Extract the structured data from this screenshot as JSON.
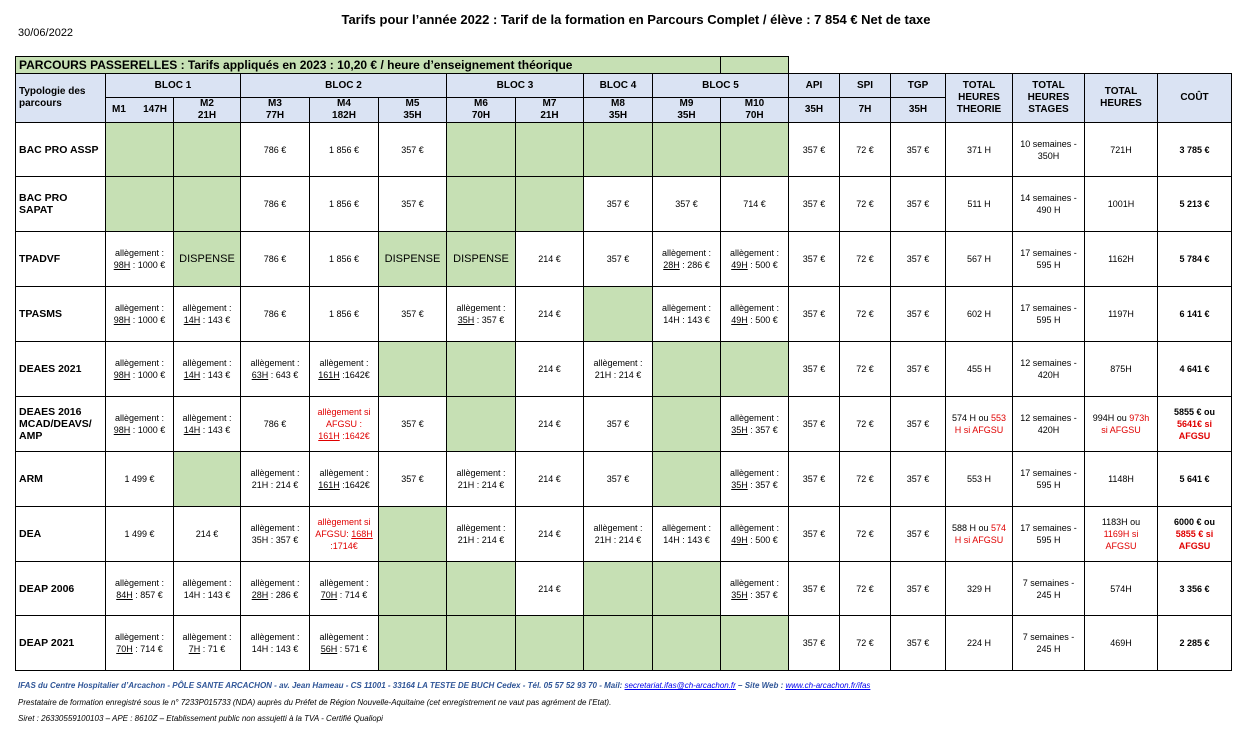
{
  "date": "30/06/2022",
  "title": "Tarifs pour l’année 2022 : Tarif de la formation en Parcours Complet / élève : 7 854 € Net de taxe",
  "banner": "PARCOURS PASSERELLES : Tarifs appliqués en 2023 : 10,20 € / heure d’enseignement théorique",
  "header": {
    "typologie": "Typologie des parcours",
    "bloc1": "BLOC 1",
    "bloc2": "BLOC 2",
    "bloc3": "BLOC 3",
    "bloc4": "BLOC 4",
    "bloc5": "BLOC 5",
    "m1": "M1",
    "m1h": "147H",
    "m2": "M2",
    "m2h": "21H",
    "m3": "M3",
    "m3h": "77H",
    "m4": "M4",
    "m4h": "182H",
    "m5": "M5",
    "m5h": "35H",
    "m6": "M6",
    "m6h": "70H",
    "m7": "M7",
    "m7h": "21H",
    "m8": "M8",
    "m8h": "35H",
    "m9": "M9",
    "m9h": "35H",
    "m10": "M10",
    "m10h": "70H",
    "api": "API",
    "apih": "35H",
    "spi": "SPI",
    "spih": "7H",
    "tgp": "TGP",
    "tgph": "35H",
    "tht1": "TOTAL",
    "tht2": "HEURES",
    "tht3": "THEORIE",
    "ths1": "TOTAL",
    "ths2": "HEURES",
    "ths3": "STAGES",
    "th1": "TOTAL",
    "th2": "HEURES",
    "cout": "COÛT"
  },
  "rows": {
    "assp": {
      "name": "BAC PRO ASSP",
      "m3": "786 €",
      "m4": "1 856 €",
      "m5": "357 €",
      "api": "357 €",
      "spi": "72 €",
      "tgp": "357 €",
      "tht": "371 H",
      "ths1": "10 semaines -",
      "ths2": "350H",
      "th": "721H",
      "cout": "3 785 €"
    },
    "sapat": {
      "name": "BAC PRO SAPAT",
      "m3": "786 €",
      "m4": "1 856 €",
      "m5": "357 €",
      "m8": "357 €",
      "m9": "357 €",
      "m10": "714 €",
      "api": "357 €",
      "spi": "72 €",
      "tgp": "357 €",
      "tht": "511 H",
      "ths1": "14 semaines -",
      "ths2": "490 H",
      "th": "1001H",
      "cout": "5 213 €"
    },
    "tpadvf": {
      "name": "TPADVF",
      "m1a": "allègement :",
      "m1b": "98H",
      "m1c": " : 1000 €",
      "m2": "DISPENSE",
      "m3": "786 €",
      "m4": "1 856 €",
      "m5": "DISPENSE",
      "m6": "DISPENSE",
      "m7": "214 €",
      "m8": "357 €",
      "m9a": "allègement :",
      "m9b": "28H",
      "m9c": " : 286 €",
      "m10a": "allègement :",
      "m10b": "49H",
      "m10c": " : 500 €",
      "api": "357 €",
      "spi": "72 €",
      "tgp": "357 €",
      "tht": "567 H",
      "ths1": "17 semaines -",
      "ths2": "595 H",
      "th": "1162H",
      "cout": "5 784 €"
    },
    "tpasms": {
      "name": "TPASMS",
      "m1a": "allègement :",
      "m1b": "98H",
      "m1c": " : 1000 €",
      "m2a": "allègement :",
      "m2b": "14H",
      "m2c": " : 143 €",
      "m3": "786 €",
      "m4": "1 856 €",
      "m5": "357 €",
      "m6a": "allègement :",
      "m6b": "35H",
      "m6c": " : 357 €",
      "m7": "214 €",
      "m9a": "allègement :",
      "m9b": "14H : 143 €",
      "m10a": "allègement :",
      "m10b": "49H",
      "m10c": " : 500 €",
      "api": "357 €",
      "spi": "72 €",
      "tgp": "357 €",
      "tht": "602 H",
      "ths1": "17 semaines -",
      "ths2": "595 H",
      "th": "1197H",
      "cout": "6 141 €"
    },
    "deaes2021": {
      "name": "DEAES 2021",
      "m1a": "allègement :",
      "m1b": "98H",
      "m1c": " : 1000 €",
      "m2a": "allègement :",
      "m2b": "14H",
      "m2c": " : 143 €",
      "m3a": "allègement :",
      "m3b": "63H",
      "m3c": " : 643 €",
      "m4a": "allègement :",
      "m4b": "161H",
      "m4c": " :1642€",
      "m7": "214 €",
      "m8a": "allègement :",
      "m8b": "21H : 214 €",
      "api": "357 €",
      "spi": "72 €",
      "tgp": "357 €",
      "tht": "455 H",
      "ths1": "12 semaines -",
      "ths2": "420H",
      "th": "875H",
      "cout": "4 641 €"
    },
    "deaes2016": {
      "name1": "DEAES 2016",
      "name2": "MCAD/DEAVS/",
      "name3": "AMP",
      "m1a": "allègement :",
      "m1b": "98H",
      "m1c": " : 1000 €",
      "m2a": "allègement :",
      "m2b": "14H",
      "m2c": " : 143 €",
      "m3": "786 €",
      "m4a": "allègement si",
      "m4b": "AFGSU :",
      "m4c": "161H",
      "m4d": " :1642€",
      "m5": "357 €",
      "m7": "214 €",
      "m8": "357 €",
      "m10a": "allègement :",
      "m10b": "35H",
      "m10c": " : 357 €",
      "api": "357 €",
      "spi": "72 €",
      "tgp": "357 €",
      "tht1": "574 H ou ",
      "tht2": "553",
      "tht3": "H si AFGSU",
      "ths1": "12 semaines -",
      "ths2": "420H",
      "th1": "994H ou ",
      "th2": "973h",
      "th3": "si AFGSU",
      "cout1": "5855 € ou",
      "cout2": "5641€ si",
      "cout3": "AFGSU"
    },
    "arm": {
      "name": "ARM",
      "m1": "1 499 €",
      "m3a": "allègement :",
      "m3b": "21H : 214 €",
      "m4a": "allègement :",
      "m4b": "161H",
      "m4c": " :1642€",
      "m5": "357 €",
      "m6a": "allègement :",
      "m6b": "21H : 214 €",
      "m7": "214 €",
      "m8": "357 €",
      "m10a": "allègement :",
      "m10b": "35H",
      "m10c": " : 357 €",
      "api": "357 €",
      "spi": "72 €",
      "tgp": "357 €",
      "tht": "553 H",
      "ths1": "17 semaines -",
      "ths2": "595 H",
      "th": "1148H",
      "cout": "5 641 €"
    },
    "dea": {
      "name": "DEA",
      "m1": "1 499 €",
      "m2": "214 €",
      "m3a": "allègement :",
      "m3b": "35H : 357 €",
      "m4a": "allègement si",
      "m4b": "AFGSU: ",
      "m4c": "168H",
      "m4d": ":1714€",
      "m6a": "allègement :",
      "m6b": "21H : 214 €",
      "m7": "214 €",
      "m8a": "allègement :",
      "m8b": "21H : 214 €",
      "m9a": "allègement :",
      "m9b": "14H : 143 €",
      "m10a": "allègement :",
      "m10b": "49H",
      "m10c": " : 500 €",
      "api": "357 €",
      "spi": "72 €",
      "tgp": "357 €",
      "tht1": "588 H ou ",
      "tht2": "574",
      "tht3": "H si AFGSU",
      "ths1": "17 semaines -",
      "ths2": "595 H",
      "th1": "1183H ou",
      "th2": "1169H si",
      "th3": "AFGSU",
      "cout1": "6000 € ou",
      "cout2": "5855 € si",
      "cout3": "AFGSU"
    },
    "deap2006": {
      "name": "DEAP 2006",
      "m1a": "allègement :",
      "m1b": "84H",
      "m1c": " : 857 €",
      "m2a": "allègement :",
      "m2b": "14H : 143 €",
      "m3a": "allègement :",
      "m3b": "28H",
      "m3c": " : 286 €",
      "m4a": "allègement :",
      "m4b": "70H",
      "m4c": " : 714 €",
      "m7": "214 €",
      "m10a": "allègement :",
      "m10b": "35H",
      "m10c": " : 357 €",
      "api": "357 €",
      "spi": "72 €",
      "tgp": "357 €",
      "tht": "329 H",
      "ths1": "7 semaines -",
      "ths2": "245 H",
      "th": "574H",
      "cout": "3 356 €"
    },
    "deap2021": {
      "name": "DEAP 2021",
      "m1a": "allègement :",
      "m1b": "70H",
      "m1c": " : 714 €",
      "m2a": "allègement :",
      "m2b": "7H",
      "m2c": " : 71 €",
      "m3a": "allègement :",
      "m3b": "14H : 143 €",
      "m4a": "allègement :",
      "m4b": "56H",
      "m4c": " : 571 €",
      "api": "357 €",
      "spi": "72 €",
      "tgp": "357 €",
      "tht": "224 H",
      "ths1": "7 semaines -",
      "ths2": "245 H",
      "th": "469H",
      "cout": "2 285 €"
    }
  },
  "footer": {
    "line1a": "IFAS du Centre Hospitalier d’Arcachon - PÔLE SANTE ARCACHON - av. Jean Hameau - CS 11001 - 33164 LA TESTE DE BUCH Cedex - Tél. 05 57 52 93 70 - Mail: ",
    "mail": "secretariat.ifas@ch-arcachon.fr",
    "line1b": " – Site Web : ",
    "web": "www.ch-arcachon.fr/ifas",
    "line2": "Prestataire de formation enregistré sous le n° 7233P015733 (NDA) auprès du Préfet de Région Nouvelle-Aquitaine (cet enregistrement ne vaut pas agrément de l’Etat).",
    "line3": "Siret : 26330559100103 – APE : 8610Z – Etablissement public non assujetti à la TVA - Certifié Qualiopi"
  },
  "colors": {
    "header_bg": "#dae3f3",
    "excluded_bg": "#c6e0b4",
    "highlight_red": "#e00000"
  }
}
